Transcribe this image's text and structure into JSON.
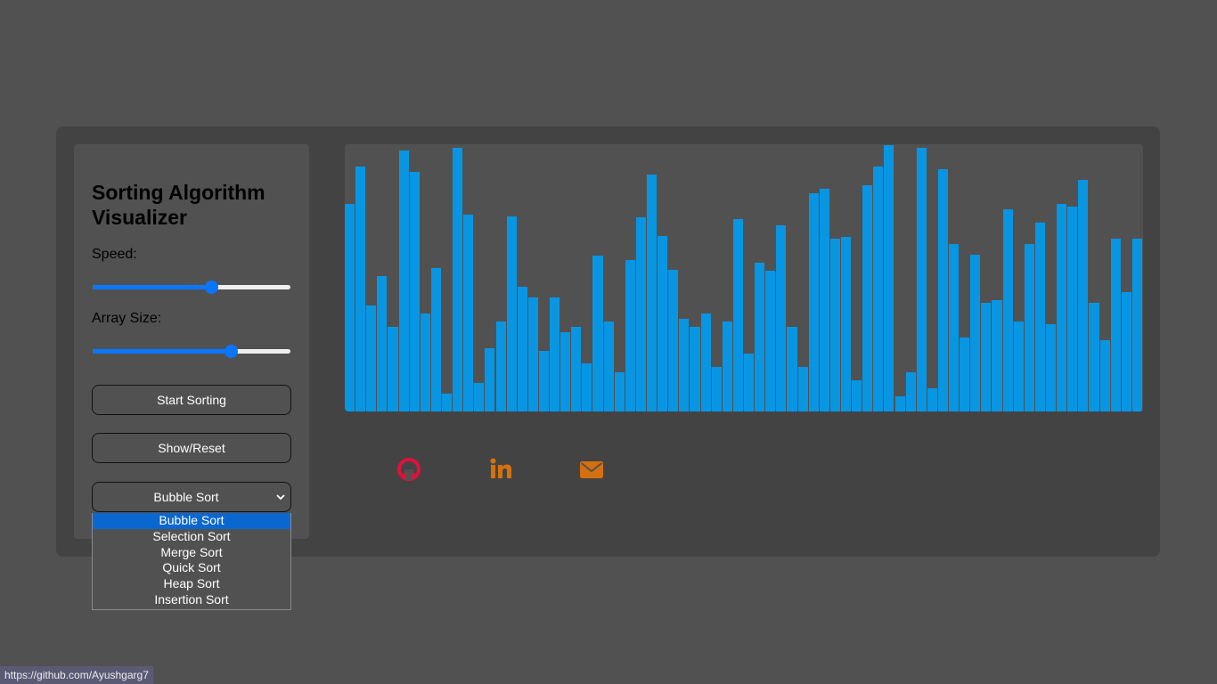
{
  "title": "Sorting Algorithm Visualizer",
  "controls": {
    "speed_label": "Speed:",
    "speed_value": 0.6,
    "size_label": "Array Size:",
    "size_value": 0.7,
    "start_label": "Start Sorting",
    "reset_label": "Show/Reset",
    "algorithm_selected": "Bubble Sort",
    "algorithm_options": [
      "Bubble Sort",
      "Selection Sort",
      "Merge Sort",
      "Quick Sort",
      "Heap Sort",
      "Insertion Sort"
    ]
  },
  "array": {
    "bar_color": "#0896e3",
    "values": [
      233,
      275,
      119,
      152,
      95,
      293,
      269,
      110,
      161,
      20,
      296,
      221,
      32,
      71,
      101,
      219,
      140,
      128,
      68,
      128,
      89,
      95,
      54,
      175,
      101,
      44,
      170,
      218,
      266,
      197,
      159,
      104,
      95,
      110,
      50,
      101,
      216,
      65,
      167,
      158,
      209,
      95,
      50,
      245,
      250,
      194,
      196,
      35,
      254,
      275,
      299,
      17,
      44,
      296,
      26,
      272,
      188,
      83,
      176,
      122,
      125,
      227,
      101,
      188,
      212,
      98,
      233,
      230,
      260,
      122,
      80,
      194,
      134,
      194
    ]
  },
  "social": {
    "github_color": "#e0103d",
    "linkedin_color": "#d4700d",
    "email_color": "#d4700d"
  },
  "status_url": "https://github.com/Ayushgarg7"
}
